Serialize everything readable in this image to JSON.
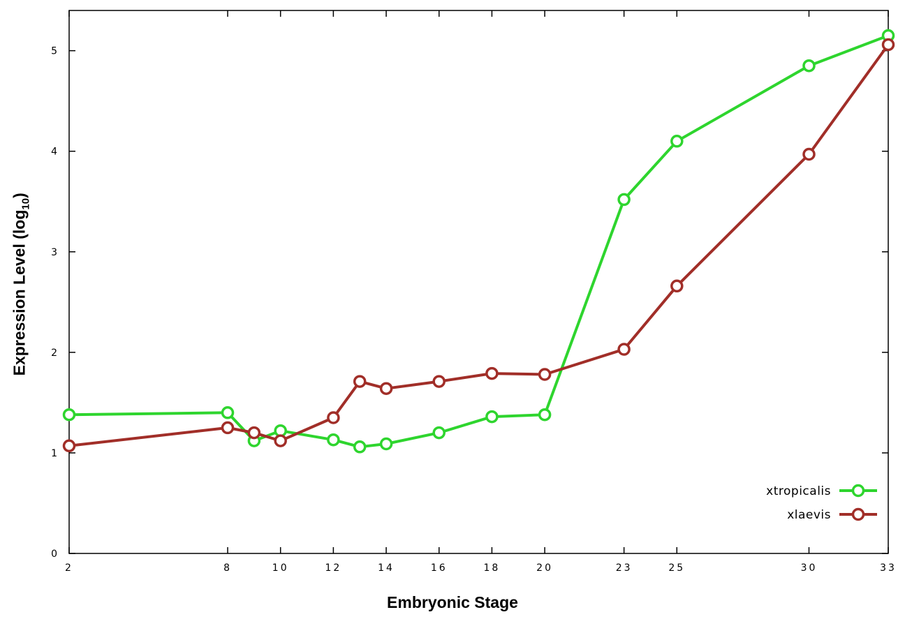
{
  "chart_data": {
    "type": "line",
    "title": "",
    "xlabel": "Embryonic Stage",
    "ylabel": "Expression Level (log10)",
    "ylabel_parts": {
      "main": "Expression Level (log",
      "sub": "10",
      "close": ")"
    },
    "x": [
      2,
      8,
      9,
      10,
      12,
      13,
      14,
      16,
      18,
      20,
      23,
      25,
      30,
      33
    ],
    "x_tick_labels": [
      2,
      8,
      10,
      12,
      14,
      16,
      18,
      20,
      23,
      25,
      30,
      33
    ],
    "y_tick_labels": [
      0,
      1,
      2,
      3,
      4,
      5
    ],
    "xlim": [
      2,
      33
    ],
    "ylim": [
      0,
      5.4
    ],
    "grid": false,
    "legend_position": "bottom-right-inside",
    "series": [
      {
        "name": "xtropicalis",
        "color": "#2ed52e",
        "values": [
          1.38,
          1.4,
          1.12,
          1.22,
          1.13,
          1.06,
          1.09,
          1.2,
          1.36,
          1.38,
          3.52,
          4.1,
          4.85,
          5.15
        ]
      },
      {
        "name": "xlaevis",
        "color": "#a12e28",
        "values": [
          1.07,
          1.25,
          1.2,
          1.12,
          1.35,
          1.71,
          1.64,
          1.71,
          1.79,
          1.78,
          2.03,
          2.66,
          3.97,
          5.06
        ]
      }
    ],
    "colors": {
      "axis": "#000000",
      "background": "#ffffff",
      "marker_fill": "#ffffff"
    }
  }
}
